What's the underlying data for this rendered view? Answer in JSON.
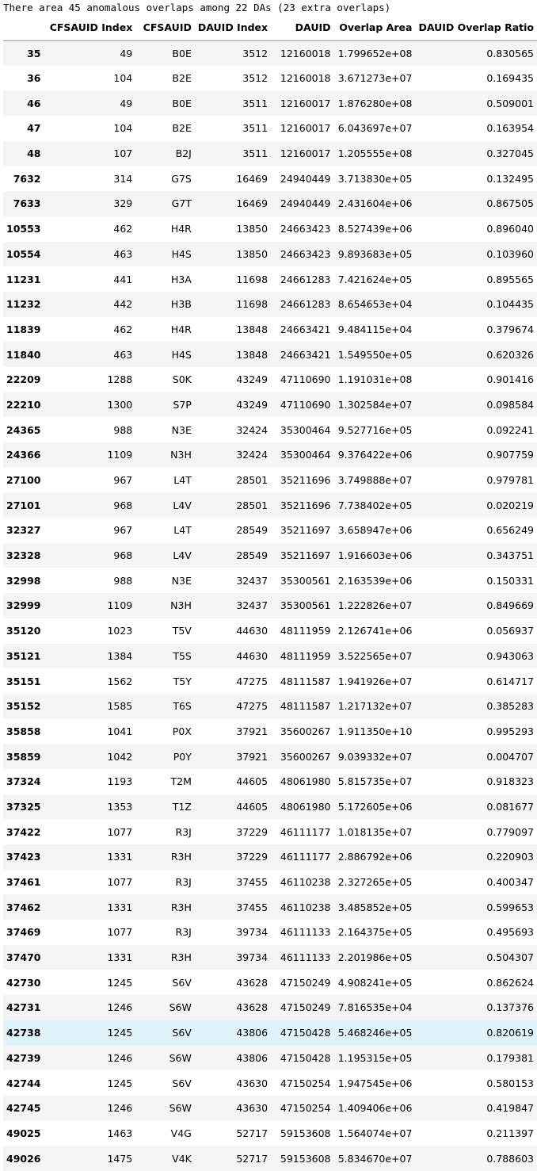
{
  "output": {
    "message": "There area 45 anomalous overlaps among 22 DAs (23 extra overlaps)"
  },
  "table": {
    "columns": [
      "",
      "CFSAUID Index",
      "CFSAUID",
      "DAUID Index",
      "DAUID",
      "Overlap Area",
      "DAUID Overlap Ratio"
    ],
    "rows": [
      [
        "35",
        "49",
        "B0E",
        "3512",
        "12160018",
        "1.799652e+08",
        "0.830565"
      ],
      [
        "36",
        "104",
        "B2E",
        "3512",
        "12160018",
        "3.671273e+07",
        "0.169435"
      ],
      [
        "46",
        "49",
        "B0E",
        "3511",
        "12160017",
        "1.876280e+08",
        "0.509001"
      ],
      [
        "47",
        "104",
        "B2E",
        "3511",
        "12160017",
        "6.043697e+07",
        "0.163954"
      ],
      [
        "48",
        "107",
        "B2J",
        "3511",
        "12160017",
        "1.205555e+08",
        "0.327045"
      ],
      [
        "7632",
        "314",
        "G7S",
        "16469",
        "24940449",
        "3.713830e+05",
        "0.132495"
      ],
      [
        "7633",
        "329",
        "G7T",
        "16469",
        "24940449",
        "2.431604e+06",
        "0.867505"
      ],
      [
        "10553",
        "462",
        "H4R",
        "13850",
        "24663423",
        "8.527439e+06",
        "0.896040"
      ],
      [
        "10554",
        "463",
        "H4S",
        "13850",
        "24663423",
        "9.893683e+05",
        "0.103960"
      ],
      [
        "11231",
        "441",
        "H3A",
        "11698",
        "24661283",
        "7.421624e+05",
        "0.895565"
      ],
      [
        "11232",
        "442",
        "H3B",
        "11698",
        "24661283",
        "8.654653e+04",
        "0.104435"
      ],
      [
        "11839",
        "462",
        "H4R",
        "13848",
        "24663421",
        "9.484115e+04",
        "0.379674"
      ],
      [
        "11840",
        "463",
        "H4S",
        "13848",
        "24663421",
        "1.549550e+05",
        "0.620326"
      ],
      [
        "22209",
        "1288",
        "S0K",
        "43249",
        "47110690",
        "1.191031e+08",
        "0.901416"
      ],
      [
        "22210",
        "1300",
        "S7P",
        "43249",
        "47110690",
        "1.302584e+07",
        "0.098584"
      ],
      [
        "24365",
        "988",
        "N3E",
        "32424",
        "35300464",
        "9.527716e+05",
        "0.092241"
      ],
      [
        "24366",
        "1109",
        "N3H",
        "32424",
        "35300464",
        "9.376422e+06",
        "0.907759"
      ],
      [
        "27100",
        "967",
        "L4T",
        "28501",
        "35211696",
        "3.749888e+07",
        "0.979781"
      ],
      [
        "27101",
        "968",
        "L4V",
        "28501",
        "35211696",
        "7.738402e+05",
        "0.020219"
      ],
      [
        "32327",
        "967",
        "L4T",
        "28549",
        "35211697",
        "3.658947e+06",
        "0.656249"
      ],
      [
        "32328",
        "968",
        "L4V",
        "28549",
        "35211697",
        "1.916603e+06",
        "0.343751"
      ],
      [
        "32998",
        "988",
        "N3E",
        "32437",
        "35300561",
        "2.163539e+06",
        "0.150331"
      ],
      [
        "32999",
        "1109",
        "N3H",
        "32437",
        "35300561",
        "1.222826e+07",
        "0.849669"
      ],
      [
        "35120",
        "1023",
        "T5V",
        "44630",
        "48111959",
        "2.126741e+06",
        "0.056937"
      ],
      [
        "35121",
        "1384",
        "T5S",
        "44630",
        "48111959",
        "3.522565e+07",
        "0.943063"
      ],
      [
        "35151",
        "1562",
        "T5Y",
        "47275",
        "48111587",
        "1.941926e+07",
        "0.614717"
      ],
      [
        "35152",
        "1585",
        "T6S",
        "47275",
        "48111587",
        "1.217132e+07",
        "0.385283"
      ],
      [
        "35858",
        "1041",
        "P0X",
        "37921",
        "35600267",
        "1.911350e+10",
        "0.995293"
      ],
      [
        "35859",
        "1042",
        "P0Y",
        "37921",
        "35600267",
        "9.039332e+07",
        "0.004707"
      ],
      [
        "37324",
        "1193",
        "T2M",
        "44605",
        "48061980",
        "5.815735e+07",
        "0.918323"
      ],
      [
        "37325",
        "1353",
        "T1Z",
        "44605",
        "48061980",
        "5.172605e+06",
        "0.081677"
      ],
      [
        "37422",
        "1077",
        "R3J",
        "37229",
        "46111177",
        "1.018135e+07",
        "0.779097"
      ],
      [
        "37423",
        "1331",
        "R3H",
        "37229",
        "46111177",
        "2.886792e+06",
        "0.220903"
      ],
      [
        "37461",
        "1077",
        "R3J",
        "37455",
        "46110238",
        "2.327265e+05",
        "0.400347"
      ],
      [
        "37462",
        "1331",
        "R3H",
        "37455",
        "46110238",
        "3.485852e+05",
        "0.599653"
      ],
      [
        "37469",
        "1077",
        "R3J",
        "39734",
        "46111133",
        "2.164375e+05",
        "0.495693"
      ],
      [
        "37470",
        "1331",
        "R3H",
        "39734",
        "46111133",
        "2.201986e+05",
        "0.504307"
      ],
      [
        "42730",
        "1245",
        "S6V",
        "43628",
        "47150249",
        "4.908241e+05",
        "0.862624"
      ],
      [
        "42731",
        "1246",
        "S6W",
        "43628",
        "47150249",
        "7.816535e+04",
        "0.137376"
      ],
      [
        "42738",
        "1245",
        "S6V",
        "43806",
        "47150428",
        "5.468246e+05",
        "0.820619"
      ],
      [
        "42739",
        "1246",
        "S6W",
        "43806",
        "47150428",
        "1.195315e+05",
        "0.179381"
      ],
      [
        "42744",
        "1245",
        "S6V",
        "43630",
        "47150254",
        "1.947545e+06",
        "0.580153"
      ],
      [
        "42745",
        "1246",
        "S6W",
        "43630",
        "47150254",
        "1.409406e+06",
        "0.419847"
      ],
      [
        "49025",
        "1463",
        "V4G",
        "52717",
        "59153608",
        "1.564074e+07",
        "0.211397"
      ],
      [
        "49026",
        "1475",
        "V4K",
        "52717",
        "59153608",
        "5.834670e+07",
        "0.788603"
      ]
    ],
    "hovered_row": "42738",
    "colors": {
      "stripe": "#f5f5f5",
      "hover": "#e1f3fb",
      "header_rule": "#9a9a9a"
    }
  }
}
